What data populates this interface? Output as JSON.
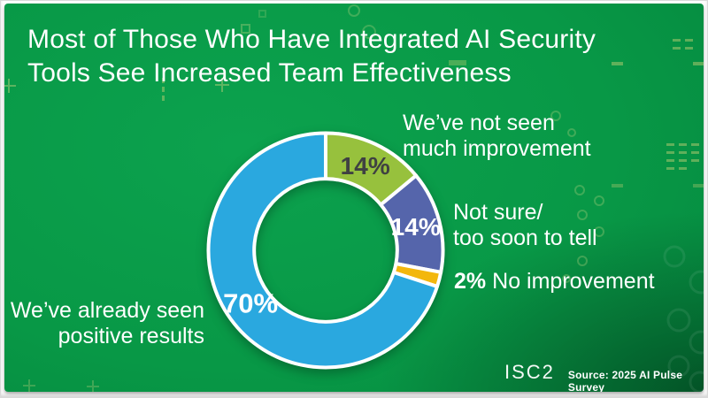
{
  "page": {
    "title_lines": [
      "Most of Those Who Have Integrated AI Security",
      "Tools See Increased Team Effectiveness"
    ]
  },
  "chart_data": {
    "type": "pie",
    "variant": "donut",
    "title": "Most of Those Who Have Integrated AI Security Tools See Increased Team Effectiveness",
    "total": 100,
    "start_angle_deg": 0,
    "direction": "clockwise",
    "inner_radius_ratio": 0.61,
    "ring_outline_color": "#ffffff",
    "slices": [
      {
        "id": "not-seen-much-improvement",
        "label": "We’ve not seen much improvement",
        "value": 14,
        "pct_label": "14%",
        "color": "#97c13d",
        "pct_color": "#3f4142",
        "show_pct_inside": true
      },
      {
        "id": "not-sure-too-soon",
        "label": "Not sure/ too soon to tell",
        "value": 14,
        "pct_label": "14%",
        "color": "#5565ab",
        "pct_color": "#ffffff",
        "show_pct_inside": true
      },
      {
        "id": "no-improvement",
        "label": "No improvement",
        "value": 2,
        "pct_label": "2%",
        "color": "#f3b70d",
        "pct_color": "#ffffff",
        "show_pct_inside": false
      },
      {
        "id": "already-seen-positive-results",
        "label": "We’ve already seen positive results",
        "value": 70,
        "pct_label": "70%",
        "color": "#2aa8df",
        "pct_color": "#ffffff",
        "show_pct_inside": true
      }
    ]
  },
  "callouts": {
    "not_seen": {
      "lines": [
        "We’ve not seen",
        "much improvement"
      ]
    },
    "not_sure": {
      "lines": [
        "Not sure/",
        "too soon to tell"
      ]
    },
    "no_improvement": {
      "pct": "2%",
      "text": "No improvement"
    },
    "positive": {
      "lines": [
        "We’ve already seen",
        "positive results"
      ]
    }
  },
  "footer": {
    "logo": "ISC2",
    "source": "Source: 2025 AI Pulse Survey"
  }
}
